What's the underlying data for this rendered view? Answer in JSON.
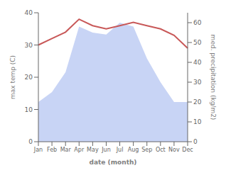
{
  "chart_data": {
    "type": "line",
    "xlabel": "date (month)",
    "ylabel": "max temp (C)",
    "y2label": "med. precipitation (kg/m2)",
    "categories": [
      "Jan",
      "Feb",
      "Mar",
      "Apr",
      "May",
      "Jun",
      "Jul",
      "Aug",
      "Sep",
      "Oct",
      "Nov",
      "Dec"
    ],
    "series": [
      {
        "type": "area",
        "axis": "y2",
        "color": "#c8d4f5",
        "values": [
          20,
          25,
          35,
          58,
          55,
          54,
          60,
          58,
          42,
          30,
          20,
          20
        ]
      },
      {
        "type": "line",
        "color": "#c85858",
        "values": [
          30,
          32,
          34,
          38,
          36,
          35,
          36,
          37,
          36,
          35,
          33,
          29
        ]
      }
    ],
    "ylim": [
      0,
      40
    ],
    "yticks": [
      0,
      10,
      20,
      30,
      40
    ],
    "y2lim": [
      0,
      65
    ],
    "y2ticks": [
      0,
      10,
      20,
      30,
      40,
      50,
      60
    ],
    "grid": false
  }
}
